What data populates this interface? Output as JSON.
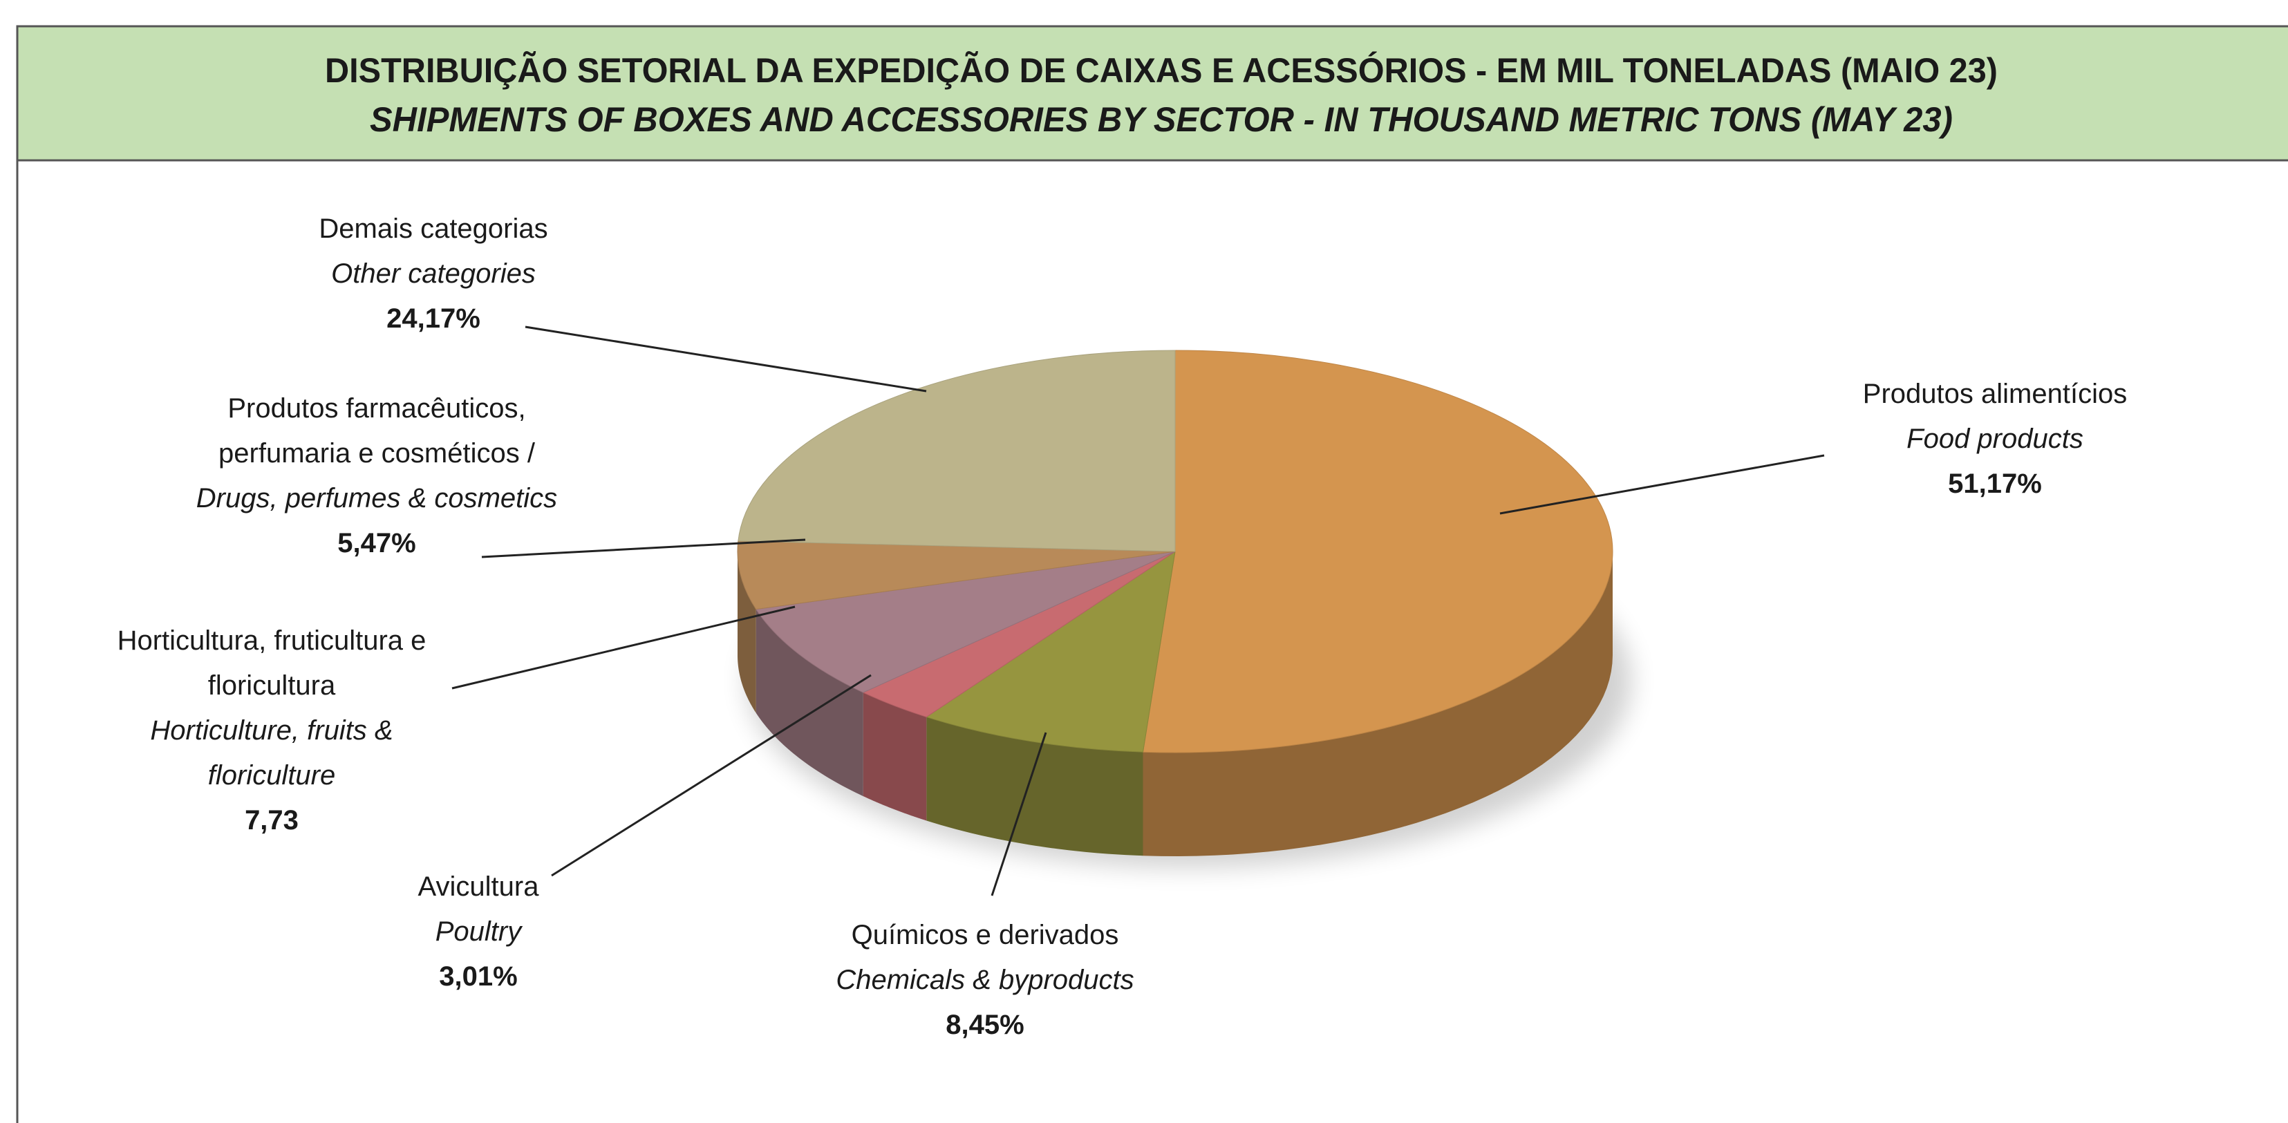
{
  "chart_data": {
    "type": "pie",
    "title": "DISTRIBUIÇÃO SETORIAL DA EXPEDIÇÃO DE CAIXAS E ACESSÓRIOS - EM MIL TONELADAS (MAIO 23)",
    "subtitle": "SHIPMENTS OF BOXES AND ACCESSORIES BY SECTOR - IN THOUSAND METRIC TONS (MAY 23)",
    "categories": [
      "Produtos alimentícios",
      "Químicos e derivados",
      "Avicultura",
      "Horticultura, fruticultura e floricultura",
      "Produtos farmacêuticos, perfumaria e cosméticos /",
      "Demais categorias"
    ],
    "categories_en": [
      "Food products",
      "Chemicals & byproducts",
      "Poultry",
      "Horticulture, fruits & floriculture",
      "Drugs, perfumes & cosmetics",
      "Other categories"
    ],
    "values": [
      51.17,
      8.45,
      3.01,
      7.73,
      5.47,
      24.17
    ],
    "value_labels": [
      "51,17%",
      "8,45%",
      "3,01%",
      "7,73",
      "5,47%",
      "24,17%"
    ],
    "colors": [
      "#d4954f",
      "#96953f",
      "#c86b70",
      "#a47e88",
      "#b88a59",
      "#bcb48b"
    ]
  }
}
